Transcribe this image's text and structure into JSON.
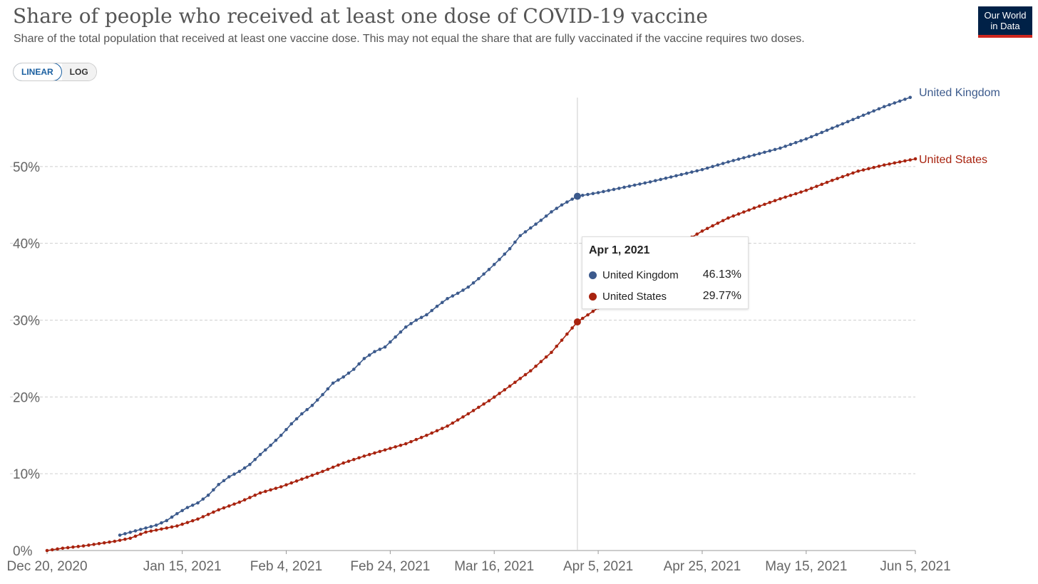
{
  "header": {
    "title": "Share of people who received at least one dose of COVID-19 vaccine",
    "subtitle": "Share of the total population that received at least one vaccine dose. This may not equal the share that are fully vaccinated if the vaccine requires two doses.",
    "logo_line1": "Our World",
    "logo_line2": "in Data"
  },
  "controls": {
    "linear_label": "LINEAR",
    "log_label": "LOG",
    "active_scale": "linear"
  },
  "colors": {
    "uk": "#3c5a8c",
    "us": "#a8230f",
    "grid": "#cccccc",
    "logo_bg": "#002147",
    "logo_accent": "#ce261e",
    "toggle_accent": "#1a5fa0"
  },
  "tooltip": {
    "date": "Apr 1, 2021",
    "rows": [
      {
        "name": "United Kingdom",
        "value": "46.13%"
      },
      {
        "name": "United States",
        "value": "29.77%"
      }
    ]
  },
  "chart_data": {
    "type": "line",
    "title": "Share of people who received at least one dose of COVID-19 vaccine",
    "xlabel": "",
    "ylabel": "",
    "x_range": [
      "2020-12-20",
      "2021-06-05"
    ],
    "ylim": [
      0,
      60
    ],
    "y_ticks": [
      0,
      10,
      20,
      30,
      40,
      50
    ],
    "y_tick_labels": [
      "0%",
      "10%",
      "20%",
      "30%",
      "40%",
      "50%"
    ],
    "x_ticks": [
      "2020-12-20",
      "2021-01-15",
      "2021-02-04",
      "2021-02-24",
      "2021-03-16",
      "2021-04-05",
      "2021-04-25",
      "2021-05-15",
      "2021-06-05"
    ],
    "x_tick_labels": [
      "Dec 20, 2020",
      "Jan 15, 2021",
      "Feb 4, 2021",
      "Feb 24, 2021",
      "Mar 16, 2021",
      "Apr 5, 2021",
      "Apr 25, 2021",
      "May 15, 2021",
      "Jun 5, 2021"
    ],
    "grid": "horizontal dashed",
    "legend": "end-of-line labels",
    "highlight_date": "2021-04-01",
    "series": [
      {
        "name": "United Kingdom",
        "color": "#3c5a8c",
        "points": [
          [
            "2021-01-03",
            2.0
          ],
          [
            "2021-01-10",
            3.3
          ],
          [
            "2021-01-12",
            3.9
          ],
          [
            "2021-01-14",
            4.8
          ],
          [
            "2021-01-16",
            5.6
          ],
          [
            "2021-01-18",
            6.2
          ],
          [
            "2021-01-20",
            7.2
          ],
          [
            "2021-01-22",
            8.6
          ],
          [
            "2021-01-24",
            9.6
          ],
          [
            "2021-01-26",
            10.3
          ],
          [
            "2021-01-28",
            11.2
          ],
          [
            "2021-01-30",
            12.5
          ],
          [
            "2021-02-01",
            13.7
          ],
          [
            "2021-02-03",
            15.0
          ],
          [
            "2021-02-05",
            16.5
          ],
          [
            "2021-02-07",
            17.8
          ],
          [
            "2021-02-09",
            18.9
          ],
          [
            "2021-02-11",
            20.3
          ],
          [
            "2021-02-13",
            21.8
          ],
          [
            "2021-02-15",
            22.6
          ],
          [
            "2021-02-17",
            23.6
          ],
          [
            "2021-02-19",
            25.0
          ],
          [
            "2021-02-21",
            25.9
          ],
          [
            "2021-02-23",
            26.5
          ],
          [
            "2021-02-25",
            27.8
          ],
          [
            "2021-02-27",
            29.1
          ],
          [
            "2021-03-01",
            30.0
          ],
          [
            "2021-03-03",
            30.7
          ],
          [
            "2021-03-05",
            31.8
          ],
          [
            "2021-03-07",
            32.8
          ],
          [
            "2021-03-09",
            33.5
          ],
          [
            "2021-03-11",
            34.3
          ],
          [
            "2021-03-13",
            35.4
          ],
          [
            "2021-03-15",
            36.6
          ],
          [
            "2021-03-17",
            37.9
          ],
          [
            "2021-03-19",
            39.3
          ],
          [
            "2021-03-21",
            41.0
          ],
          [
            "2021-03-23",
            42.0
          ],
          [
            "2021-03-25",
            43.0
          ],
          [
            "2021-03-27",
            44.1
          ],
          [
            "2021-03-29",
            45.0
          ],
          [
            "2021-04-01",
            46.13
          ],
          [
            "2021-04-05",
            46.6
          ],
          [
            "2021-04-10",
            47.3
          ],
          [
            "2021-04-15",
            48.0
          ],
          [
            "2021-04-20",
            48.8
          ],
          [
            "2021-04-25",
            49.6
          ],
          [
            "2021-04-30",
            50.6
          ],
          [
            "2021-05-05",
            51.5
          ],
          [
            "2021-05-10",
            52.4
          ],
          [
            "2021-05-15",
            53.6
          ],
          [
            "2021-05-20",
            55.0
          ],
          [
            "2021-05-25",
            56.4
          ],
          [
            "2021-05-30",
            57.8
          ],
          [
            "2021-06-04",
            59.0
          ]
        ]
      },
      {
        "name": "United States",
        "color": "#a8230f",
        "points": [
          [
            "2020-12-20",
            0.0
          ],
          [
            "2020-12-23",
            0.3
          ],
          [
            "2020-12-27",
            0.6
          ],
          [
            "2020-12-30",
            0.9
          ],
          [
            "2021-01-02",
            1.2
          ],
          [
            "2021-01-05",
            1.6
          ],
          [
            "2021-01-08",
            2.4
          ],
          [
            "2021-01-11",
            2.8
          ],
          [
            "2021-01-14",
            3.2
          ],
          [
            "2021-01-18",
            4.1
          ],
          [
            "2021-01-22",
            5.3
          ],
          [
            "2021-01-26",
            6.3
          ],
          [
            "2021-01-30",
            7.5
          ],
          [
            "2021-02-03",
            8.3
          ],
          [
            "2021-02-07",
            9.3
          ],
          [
            "2021-02-11",
            10.3
          ],
          [
            "2021-02-15",
            11.4
          ],
          [
            "2021-02-19",
            12.3
          ],
          [
            "2021-02-23",
            13.1
          ],
          [
            "2021-02-27",
            13.9
          ],
          [
            "2021-03-03",
            15.0
          ],
          [
            "2021-03-07",
            16.2
          ],
          [
            "2021-03-11",
            17.8
          ],
          [
            "2021-03-15",
            19.5
          ],
          [
            "2021-03-19",
            21.4
          ],
          [
            "2021-03-23",
            23.4
          ],
          [
            "2021-03-27",
            25.8
          ],
          [
            "2021-04-01",
            29.77
          ],
          [
            "2021-04-05",
            31.6
          ],
          [
            "2021-04-10",
            34.6
          ],
          [
            "2021-04-15",
            37.3
          ],
          [
            "2021-04-20",
            39.6
          ],
          [
            "2021-04-25",
            41.6
          ],
          [
            "2021-04-30",
            43.3
          ],
          [
            "2021-05-05",
            44.6
          ],
          [
            "2021-05-10",
            45.8
          ],
          [
            "2021-05-15",
            46.9
          ],
          [
            "2021-05-20",
            48.2
          ],
          [
            "2021-05-25",
            49.4
          ],
          [
            "2021-05-30",
            50.2
          ],
          [
            "2021-06-05",
            51.0
          ]
        ]
      }
    ]
  }
}
